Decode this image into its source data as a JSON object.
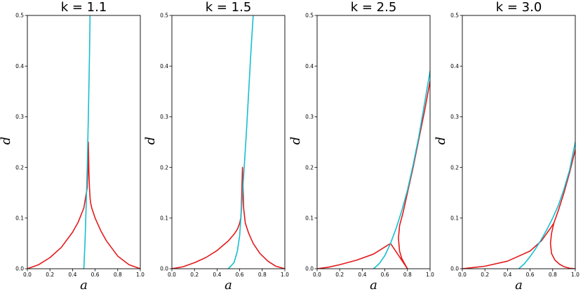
{
  "colors": {
    "red": "#e31a1c",
    "cyan": "#17becf"
  },
  "chart_data": [
    {
      "type": "line",
      "title": "k = 1.1",
      "xlabel": "a",
      "ylabel": "d",
      "xlim": [
        0.0,
        1.0
      ],
      "ylim": [
        0.0,
        0.5
      ],
      "xticks": [
        "0.0",
        "0.2",
        "0.4",
        "0.6",
        "0.8",
        "1.0"
      ],
      "yticks": [
        "0.0",
        "0.1",
        "0.2",
        "0.3",
        "0.4",
        "0.5"
      ],
      "grid": false,
      "series": [
        {
          "color": "#e31a1c",
          "x": [
            0.0,
            0.1,
            0.2,
            0.3,
            0.4,
            0.45,
            0.5,
            0.53,
            0.535,
            0.54,
            0.545,
            0.55,
            0.555,
            0.56,
            0.57,
            0.6,
            0.65,
            0.7,
            0.8,
            0.9,
            1.0
          ],
          "y": [
            0.0,
            0.008,
            0.022,
            0.042,
            0.072,
            0.092,
            0.12,
            0.16,
            0.19,
            0.25,
            0.19,
            0.16,
            0.14,
            0.13,
            0.12,
            0.1,
            0.075,
            0.055,
            0.025,
            0.008,
            0.0
          ]
        },
        {
          "color": "#17becf",
          "x": [
            0.5,
            0.51,
            0.52,
            0.53,
            0.54,
            0.55,
            0.555
          ],
          "y": [
            0.0,
            0.05,
            0.12,
            0.2,
            0.3,
            0.42,
            0.5
          ]
        }
      ]
    },
    {
      "type": "line",
      "title": "k = 1.5",
      "xlabel": "a",
      "ylabel": "d",
      "xlim": [
        0.0,
        1.0
      ],
      "ylim": [
        0.0,
        0.5
      ],
      "xticks": [
        "0.0",
        "0.2",
        "0.4",
        "0.6",
        "0.8",
        "1.0"
      ],
      "yticks": [
        "0.0",
        "0.1",
        "0.2",
        "0.3",
        "0.4",
        "0.5"
      ],
      "grid": false,
      "series": [
        {
          "color": "#e31a1c",
          "x": [
            0.0,
            0.1,
            0.2,
            0.3,
            0.4,
            0.5,
            0.55,
            0.58,
            0.6,
            0.61,
            0.615,
            0.62,
            0.625,
            0.635,
            0.65,
            0.68,
            0.72,
            0.78,
            0.85,
            0.92,
            1.0
          ],
          "y": [
            0.0,
            0.004,
            0.012,
            0.022,
            0.036,
            0.055,
            0.068,
            0.078,
            0.09,
            0.1,
            0.12,
            0.16,
            0.2,
            0.12,
            0.09,
            0.07,
            0.05,
            0.03,
            0.015,
            0.005,
            0.0
          ]
        },
        {
          "color": "#17becf",
          "x": [
            0.5,
            0.55,
            0.58,
            0.6,
            0.62,
            0.64,
            0.66,
            0.68,
            0.7,
            0.72
          ],
          "y": [
            0.0,
            0.012,
            0.035,
            0.065,
            0.13,
            0.2,
            0.27,
            0.35,
            0.43,
            0.5
          ]
        }
      ]
    },
    {
      "type": "line",
      "title": "k = 2.5",
      "xlabel": "a",
      "ylabel": "d",
      "xlim": [
        0.0,
        1.0
      ],
      "ylim": [
        0.0,
        0.5
      ],
      "xticks": [
        "0.0",
        "0.2",
        "0.4",
        "0.6",
        "0.8",
        "1.0"
      ],
      "yticks": [
        "0.0",
        "0.1",
        "0.2",
        "0.3",
        "0.4",
        "0.5"
      ],
      "grid": false,
      "series": [
        {
          "color": "#e31a1c",
          "x": [
            1.0,
            0.95,
            0.9,
            0.85,
            0.8,
            0.78,
            0.76,
            0.73,
            0.72,
            0.73,
            0.75,
            0.78,
            0.8,
            0.65,
            0.5,
            0.35,
            0.2,
            0.1,
            0.0
          ],
          "y": [
            0.37,
            0.31,
            0.255,
            0.2,
            0.15,
            0.13,
            0.11,
            0.085,
            0.06,
            0.035,
            0.02,
            0.008,
            0.0,
            0.05,
            0.029,
            0.017,
            0.008,
            0.003,
            0.0
          ]
        },
        {
          "color": "#17becf",
          "x": [
            0.5,
            0.55,
            0.6,
            0.65,
            0.7,
            0.75,
            0.8,
            0.85,
            0.9,
            0.95,
            1.0
          ],
          "y": [
            0.0,
            0.01,
            0.026,
            0.05,
            0.08,
            0.115,
            0.155,
            0.205,
            0.26,
            0.325,
            0.39
          ]
        }
      ]
    },
    {
      "type": "line",
      "title": "k = 3.0",
      "xlabel": "a",
      "ylabel": "d",
      "xlim": [
        0.0,
        1.0
      ],
      "ylim": [
        0.0,
        0.5
      ],
      "xticks": [
        "0.0",
        "0.2",
        "0.4",
        "0.6",
        "0.8",
        "1.0"
      ],
      "yticks": [
        "0.0",
        "0.1",
        "0.2",
        "0.3",
        "0.4",
        "0.5"
      ],
      "grid": false,
      "series": [
        {
          "color": "#e31a1c",
          "x": [
            1.0,
            0.95,
            0.9,
            0.85,
            0.81,
            0.79,
            0.78,
            0.79,
            0.82,
            0.86,
            0.9,
            0.95,
            1.0
          ],
          "y": [
            0.235,
            0.19,
            0.15,
            0.115,
            0.09,
            0.07,
            0.05,
            0.03,
            0.017,
            0.009,
            0.004,
            0.001,
            0.0
          ]
        },
        {
          "color": "#e31a1c",
          "x": [
            0.0,
            0.2,
            0.4,
            0.6,
            0.7,
            0.78,
            0.81
          ],
          "y": [
            0.0,
            0.005,
            0.015,
            0.035,
            0.055,
            0.08,
            0.09
          ]
        },
        {
          "color": "#17becf",
          "x": [
            0.5,
            0.55,
            0.6,
            0.65,
            0.7,
            0.75,
            0.8,
            0.85,
            0.9,
            0.95,
            1.0
          ],
          "y": [
            0.0,
            0.01,
            0.024,
            0.04,
            0.058,
            0.078,
            0.1,
            0.125,
            0.157,
            0.195,
            0.25
          ]
        }
      ]
    }
  ]
}
